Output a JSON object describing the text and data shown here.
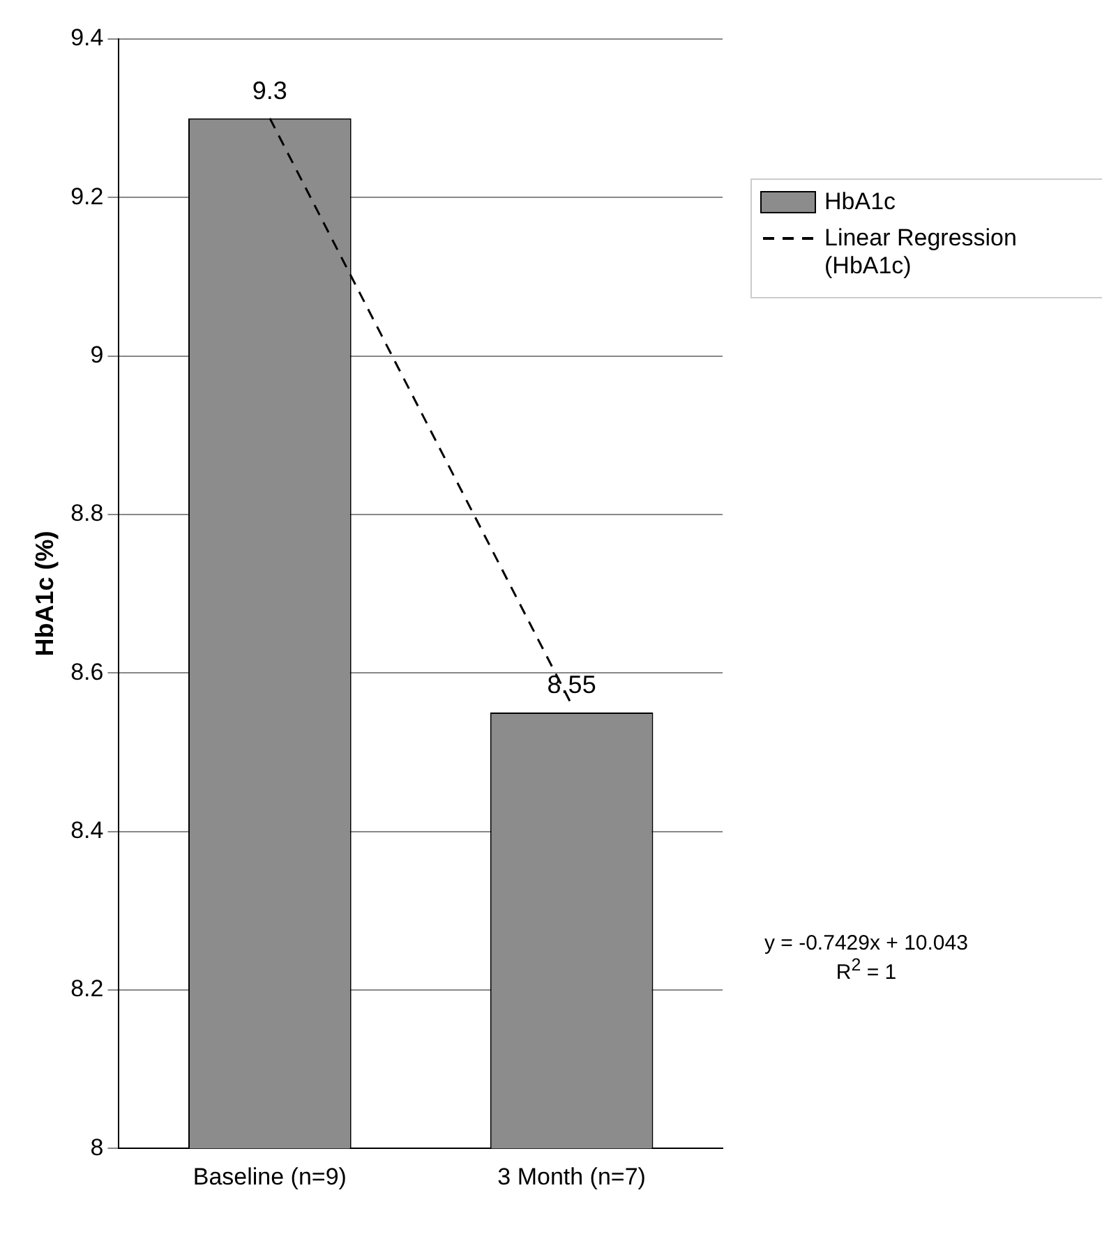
{
  "chart_data": {
    "type": "bar",
    "ylabel": "HbA1c (%)",
    "categories": [
      "Baseline (n=9)",
      "3 Month (n=7)"
    ],
    "series": [
      {
        "name": "HbA1c",
        "color": "#8c8c8c",
        "values": [
          9.3,
          8.55
        ],
        "value_labels": [
          "9.3",
          "8.55"
        ]
      },
      {
        "name": "Linear Regression (HbA1c)",
        "type": "line",
        "color": "#000000",
        "line_style": "dashed",
        "marker": "none",
        "values": [
          9.3,
          8.56
        ]
      }
    ],
    "ylim": [
      8,
      9.4
    ],
    "yticks": [
      8,
      8.2,
      8.4,
      8.6,
      8.8,
      9,
      9.2,
      9.4
    ],
    "grid": "y",
    "legend": "right",
    "annotations": [
      "y = -0.7429x + 10.043",
      "R$^{2}$ = 1"
    ]
  }
}
